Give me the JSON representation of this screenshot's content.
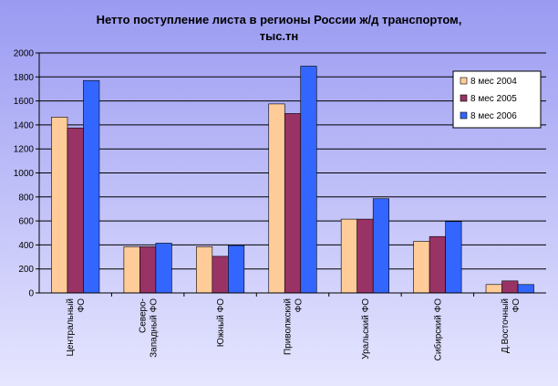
{
  "chart_data": {
    "type": "bar",
    "title_lines": [
      "Нетто поступление листа в регионы России ж/д транспортом,",
      "тыс.тн"
    ],
    "categories": [
      [
        "Центральный",
        "ФО"
      ],
      [
        "Северо-",
        "Западный ФО"
      ],
      [
        "Южный ФО"
      ],
      [
        "Приволжский",
        "ФО"
      ],
      [
        "Уральский ФО"
      ],
      [
        "Сибирский ФО"
      ],
      [
        "Д.Восточный",
        "ФО"
      ]
    ],
    "series": [
      {
        "name": "8 мес 2004",
        "color": "#FFCC99",
        "values": [
          1465,
          385,
          385,
          1575,
          615,
          430,
          70
        ]
      },
      {
        "name": "8 мес 2005",
        "color": "#993366",
        "values": [
          1375,
          385,
          305,
          1495,
          615,
          470,
          100
        ]
      },
      {
        "name": "8 мес 2006",
        "color": "#3366FF",
        "values": [
          1770,
          415,
          395,
          1890,
          785,
          595,
          70
        ]
      }
    ],
    "ylim": [
      0,
      2000
    ],
    "yticks": [
      0,
      200,
      400,
      600,
      800,
      1000,
      1200,
      1400,
      1600,
      1800,
      2000
    ],
    "grid": true,
    "legend_position": "top-right",
    "background_gradient": [
      "#9A9AF2",
      "#E6E6FF"
    ]
  }
}
